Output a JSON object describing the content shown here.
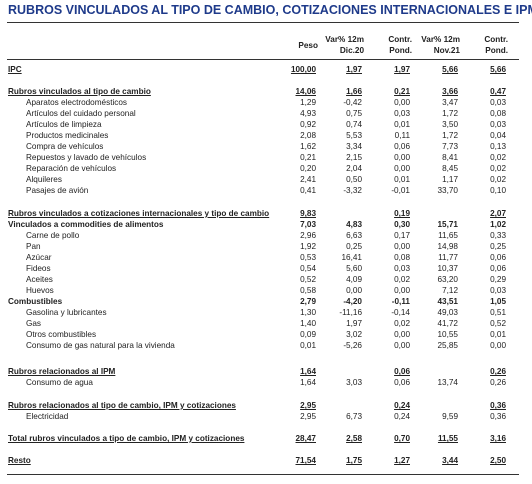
{
  "title": "RUBROS VINCULADOS AL TIPO DE CAMBIO, COTIZACIONES INTERNACIONALES E IPM",
  "headers": [
    {
      "line1": "",
      "line2": "Peso"
    },
    {
      "line1": "Var% 12m",
      "line2": "Dic.20"
    },
    {
      "line1": "Contr.",
      "line2": "Pond."
    },
    {
      "line1": "Var% 12m",
      "line2": "Nov.21"
    },
    {
      "line1": "Contr.",
      "line2": "Pond."
    }
  ],
  "rows": [
    {
      "label": "IPC",
      "style": "bold ul",
      "values": [
        "100,00",
        "1,97",
        "1,97",
        "5,66",
        "5,66"
      ]
    },
    {
      "label": "Rubros vinculados al tipo de cambio",
      "style": "bold ul",
      "values": [
        "14,06",
        "1,66",
        "0,21",
        "3,66",
        "0,47"
      ]
    },
    {
      "label": "Aparatos electrodomésticos",
      "style": "indent",
      "values": [
        "1,29",
        "-0,42",
        "0,00",
        "3,47",
        "0,03"
      ]
    },
    {
      "label": "Artículos del cuidado personal",
      "style": "indent",
      "values": [
        "4,93",
        "0,75",
        "0,03",
        "1,72",
        "0,08"
      ]
    },
    {
      "label": "Artículos de limpieza",
      "style": "indent",
      "values": [
        "0,92",
        "0,74",
        "0,01",
        "3,50",
        "0,03"
      ]
    },
    {
      "label": "Productos medicinales",
      "style": "indent",
      "values": [
        "2,08",
        "5,53",
        "0,11",
        "1,72",
        "0,04"
      ]
    },
    {
      "label": "Compra de vehículos",
      "style": "indent",
      "values": [
        "1,62",
        "3,34",
        "0,06",
        "7,73",
        "0,13"
      ]
    },
    {
      "label": "Repuestos y lavado de vehículos",
      "style": "indent",
      "values": [
        "0,21",
        "2,15",
        "0,00",
        "8,41",
        "0,02"
      ]
    },
    {
      "label": "Reparación de vehículos",
      "style": "indent",
      "values": [
        "0,20",
        "2,04",
        "0,00",
        "8,45",
        "0,02"
      ]
    },
    {
      "label": "Alquileres",
      "style": "indent",
      "values": [
        "2,41",
        "0,50",
        "0,01",
        "1,17",
        "0,02"
      ]
    },
    {
      "label": "Pasajes de avión",
      "style": "indent",
      "values": [
        "0,41",
        "-3,32",
        "-0,01",
        "33,70",
        "0,10"
      ]
    },
    {
      "label": "Rubros vinculados a cotizaciones internacionales y tipo de cambio",
      "style": "bold ul",
      "values": [
        "9,83",
        "",
        "0,19",
        "",
        "2,07"
      ]
    },
    {
      "label": "Vinculados a commodities de alimentos",
      "style": "bold",
      "values": [
        "7,03",
        "4,83",
        "0,30",
        "15,71",
        "1,02"
      ]
    },
    {
      "label": "Carne de pollo",
      "style": "indent",
      "values": [
        "2,96",
        "6,63",
        "0,17",
        "11,65",
        "0,33"
      ]
    },
    {
      "label": "Pan",
      "style": "indent",
      "values": [
        "1,92",
        "0,25",
        "0,00",
        "14,98",
        "0,25"
      ]
    },
    {
      "label": "Azúcar",
      "style": "indent",
      "values": [
        "0,53",
        "16,41",
        "0,08",
        "11,77",
        "0,06"
      ]
    },
    {
      "label": "Fideos",
      "style": "indent",
      "values": [
        "0,54",
        "5,60",
        "0,03",
        "10,37",
        "0,06"
      ]
    },
    {
      "label": "Aceites",
      "style": "indent",
      "values": [
        "0,52",
        "4,09",
        "0,02",
        "63,20",
        "0,29"
      ]
    },
    {
      "label": "Huevos",
      "style": "indent",
      "values": [
        "0,58",
        "0,00",
        "0,00",
        "7,12",
        "0,03"
      ]
    },
    {
      "label": "Combustibles",
      "style": "bold",
      "values": [
        "2,79",
        "-4,20",
        "-0,11",
        "43,51",
        "1,05"
      ]
    },
    {
      "label": "Gasolina y lubricantes",
      "style": "indent",
      "values": [
        "1,30",
        "-11,16",
        "-0,14",
        "49,03",
        "0,51"
      ]
    },
    {
      "label": "Gas",
      "style": "indent",
      "values": [
        "1,40",
        "1,97",
        "0,02",
        "41,72",
        "0,52"
      ]
    },
    {
      "label": "Otros combustibles",
      "style": "indent",
      "values": [
        "0,09",
        "3,02",
        "0,00",
        "10,55",
        "0,01"
      ]
    },
    {
      "label": "Consumo de gas natural para la vivienda",
      "style": "indent",
      "values": [
        "0,01",
        "-5,26",
        "0,00",
        "25,85",
        "0,00"
      ]
    },
    {
      "label": "Rubros relacionados al IPM",
      "style": "bold ul",
      "values": [
        "1,64",
        "",
        "0,06",
        "",
        "0,26"
      ]
    },
    {
      "label": "Consumo de agua",
      "style": "indent",
      "values": [
        "1,64",
        "3,03",
        "0,06",
        "13,74",
        "0,26"
      ]
    },
    {
      "label": "Rubros relacionados al tipo de cambio, IPM y cotizaciones",
      "style": "bold ul",
      "values": [
        "2,95",
        "",
        "0,24",
        "",
        "0,36"
      ]
    },
    {
      "label": "Electricidad",
      "style": "indent",
      "values": [
        "2,95",
        "6,73",
        "0,24",
        "9,59",
        "0,36"
      ]
    },
    {
      "label": "Total rubros vinculados a tipo de cambio, IPM y cotizaciones",
      "style": "bold ul",
      "values": [
        "28,47",
        "2,58",
        "0,70",
        "11,55",
        "3,16"
      ]
    },
    {
      "label": "Resto",
      "style": "bold ul",
      "values": [
        "71,54",
        "1,75",
        "1,27",
        "3,44",
        "2,50"
      ]
    }
  ]
}
